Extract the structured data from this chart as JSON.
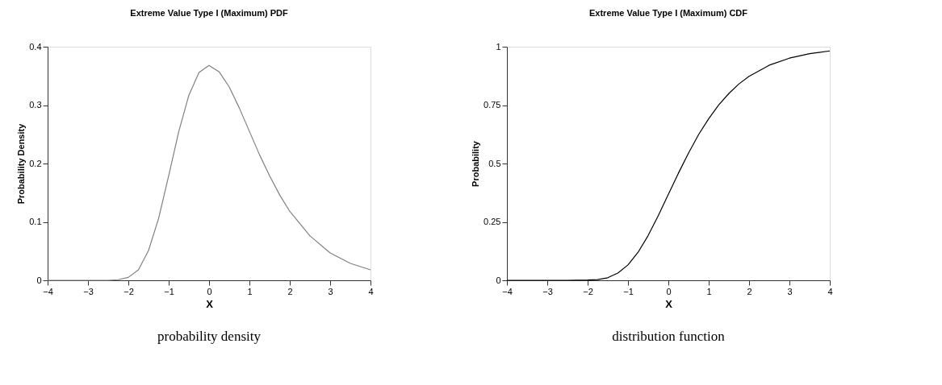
{
  "chart_data": [
    {
      "type": "line",
      "title": "Extreme Value Type I (Maximum) PDF",
      "xlabel": "X",
      "ylabel": "Probability Density",
      "color": "#808080",
      "x": [
        -4,
        -3,
        -2.5,
        -2.25,
        -2,
        -1.75,
        -1.5,
        -1.25,
        -1,
        -0.75,
        -0.5,
        -0.25,
        0,
        0.25,
        0.5,
        0.75,
        1,
        1.25,
        1.5,
        1.75,
        2,
        2.5,
        3,
        3.5,
        4
      ],
      "values": [
        0,
        0,
        0,
        0.001,
        0.005,
        0.018,
        0.051,
        0.106,
        0.179,
        0.255,
        0.317,
        0.356,
        0.368,
        0.357,
        0.331,
        0.295,
        0.255,
        0.215,
        0.179,
        0.146,
        0.118,
        0.076,
        0.047,
        0.029,
        0.018
      ],
      "xlim": [
        -4,
        4
      ],
      "xticks": [
        -4,
        -3,
        -2,
        -1,
        0,
        1,
        2,
        3,
        4
      ],
      "ylim": [
        0,
        0.4
      ],
      "yticks": [
        0,
        0.1,
        0.2,
        0.3,
        0.4
      ],
      "annotations": [
        "probability density"
      ]
    },
    {
      "type": "line",
      "title": "Extreme Value Type I (Maximum) CDF",
      "xlabel": "X",
      "ylabel": "Probability",
      "color": "#000000",
      "x": [
        -4,
        -3,
        -2.5,
        -2,
        -1.75,
        -1.5,
        -1.25,
        -1,
        -0.75,
        -0.5,
        -0.25,
        0,
        0.25,
        0.5,
        0.75,
        1,
        1.25,
        1.5,
        1.75,
        2,
        2.5,
        3,
        3.5,
        4
      ],
      "values": [
        0,
        0,
        0,
        0.001,
        0.003,
        0.011,
        0.031,
        0.066,
        0.12,
        0.192,
        0.277,
        0.368,
        0.459,
        0.545,
        0.624,
        0.692,
        0.751,
        0.8,
        0.841,
        0.873,
        0.921,
        0.951,
        0.97,
        0.982
      ],
      "xlim": [
        -4,
        4
      ],
      "xticks": [
        -4,
        -3,
        -2,
        -1,
        0,
        1,
        2,
        3,
        4
      ],
      "ylim": [
        0,
        1
      ],
      "yticks": [
        0,
        0.25,
        0.5,
        0.75,
        1
      ],
      "annotations": [
        "distribution function"
      ]
    }
  ]
}
